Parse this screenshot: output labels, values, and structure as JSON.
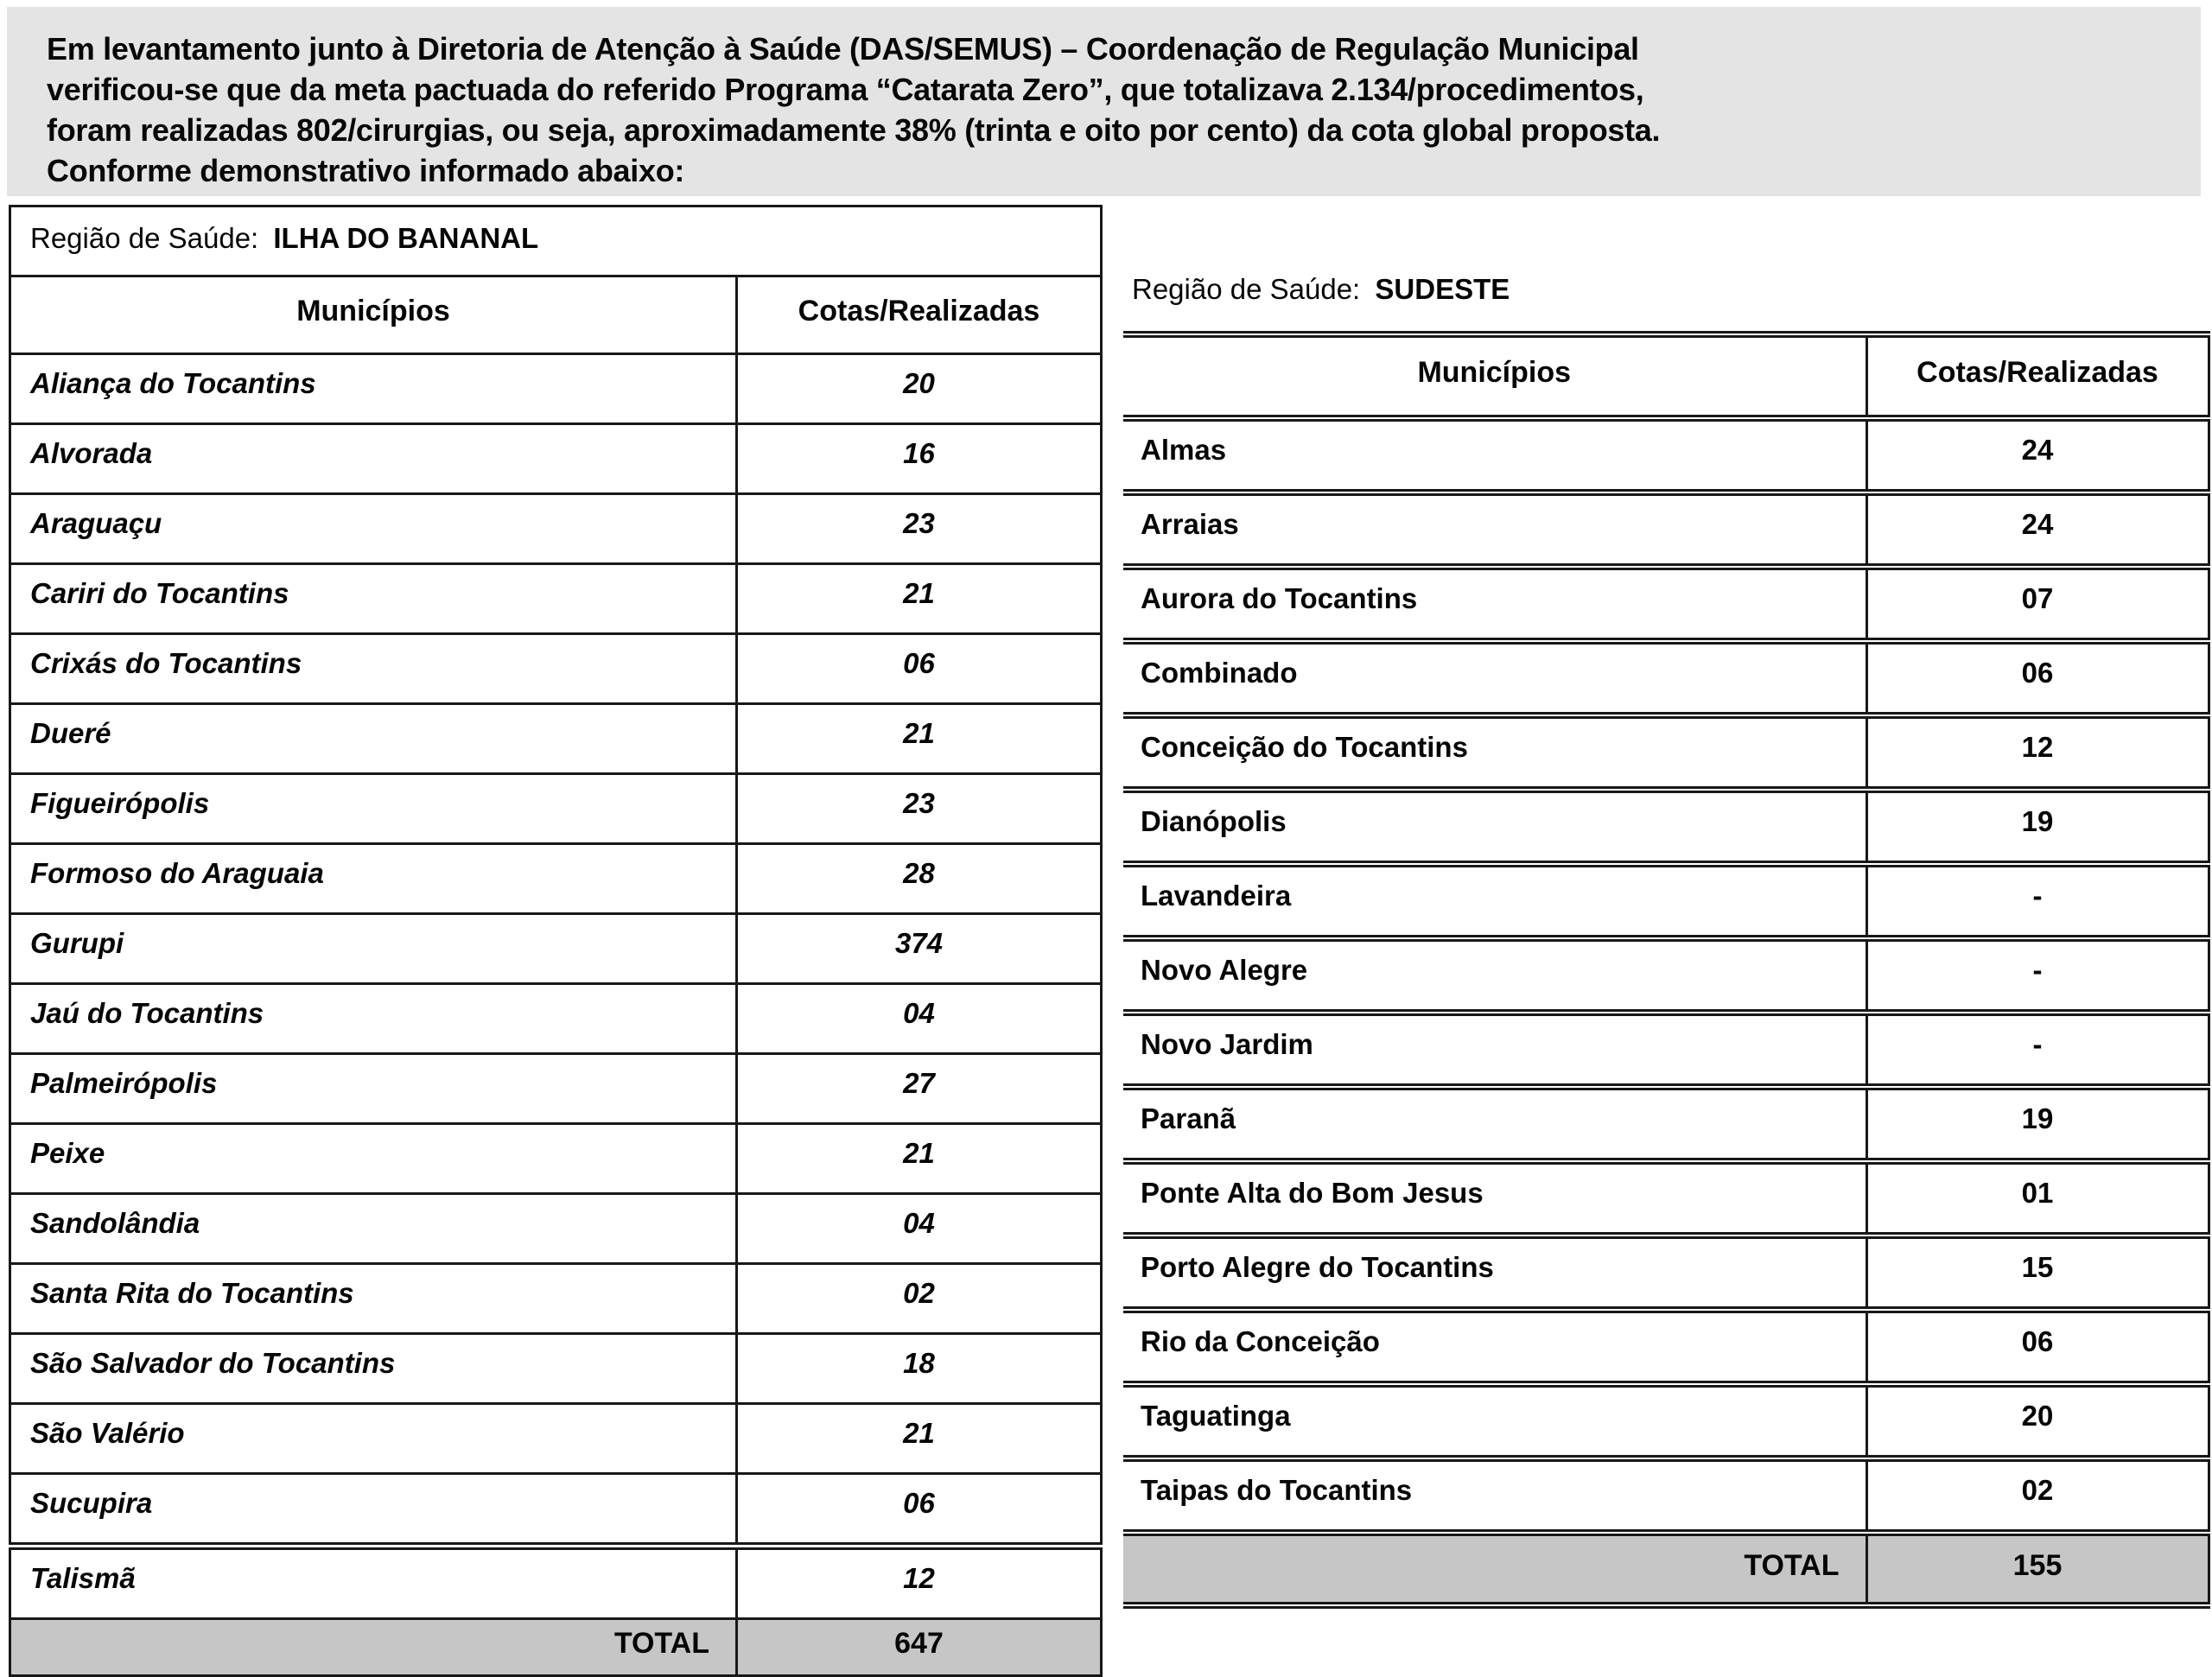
{
  "intro": {
    "lines": [
      "Em levantamento junto à Diretoria de Atenção à Saúde (DAS/SEMUS) – Coordenação de Regulação Municipal",
      "verificou-se que da meta pactuada do referido Programa “Catarata Zero”, que totalizava 2.134/procedimentos,",
      "foram realizadas 802/cirurgias, ou seja, aproximadamente 38% (trinta e oito por cento) da cota global proposta.",
      "Conforme demonstrativo informado abaixo:"
    ]
  },
  "tables": [
    {
      "region_label": "Região de Saúde:",
      "region_name": "ILHA DO BANANAL",
      "columns": [
        "Municípios",
        "Cotas/Realizadas"
      ],
      "rows": [
        {
          "name": "Aliança do Tocantins",
          "value": "20"
        },
        {
          "name": "Alvorada",
          "value": "16"
        },
        {
          "name": "Araguaçu",
          "value": "23"
        },
        {
          "name": "Cariri do Tocantins",
          "value": "21"
        },
        {
          "name": "Crixás do Tocantins",
          "value": "06"
        },
        {
          "name": "Dueré",
          "value": "21"
        },
        {
          "name": "Figueirópolis",
          "value": "23"
        },
        {
          "name": "Formoso do Araguaia",
          "value": "28"
        },
        {
          "name": "Gurupi",
          "value": "374"
        },
        {
          "name": "Jaú do Tocantins",
          "value": "04"
        },
        {
          "name": "Palmeirópolis",
          "value": "27"
        },
        {
          "name": "Peixe",
          "value": "21"
        },
        {
          "name": "Sandolândia",
          "value": "04"
        },
        {
          "name": "Santa Rita do Tocantins",
          "value": "02"
        },
        {
          "name": "São Salvador do Tocantins",
          "value": "18"
        },
        {
          "name": "São Valério",
          "value": "21"
        },
        {
          "name": "Sucupira",
          "value": "06"
        },
        {
          "name": "Talismã",
          "value": "12"
        }
      ],
      "total_label": "TOTAL",
      "total_value": "647"
    },
    {
      "region_label": "Região de Saúde:",
      "region_name": "SUDESTE",
      "columns": [
        "Municípios",
        "Cotas/Realizadas"
      ],
      "rows": [
        {
          "name": "Almas",
          "value": "24"
        },
        {
          "name": "Arraias",
          "value": "24"
        },
        {
          "name": "Aurora do Tocantins",
          "value": "07"
        },
        {
          "name": "Combinado",
          "value": "06"
        },
        {
          "name": "Conceição do Tocantins",
          "value": "12"
        },
        {
          "name": "Dianópolis",
          "value": "19"
        },
        {
          "name": "Lavandeira",
          "value": "-"
        },
        {
          "name": "Novo Alegre",
          "value": "-"
        },
        {
          "name": "Novo Jardim",
          "value": "-"
        },
        {
          "name": "Paranã",
          "value": "19"
        },
        {
          "name": "Ponte Alta do Bom Jesus",
          "value": "01"
        },
        {
          "name": "Porto Alegre do Tocantins",
          "value": "15"
        },
        {
          "name": "Rio da Conceição",
          "value": "06"
        },
        {
          "name": "Taguatinga",
          "value": "20"
        },
        {
          "name": "Taipas do Tocantins",
          "value": "02"
        }
      ],
      "total_label": "TOTAL",
      "total_value": "155"
    }
  ],
  "colors": {
    "band_bg": "#e4e4e4",
    "total_row_bg": "#c6c6c6",
    "border": "#181818",
    "text": "#060606"
  }
}
